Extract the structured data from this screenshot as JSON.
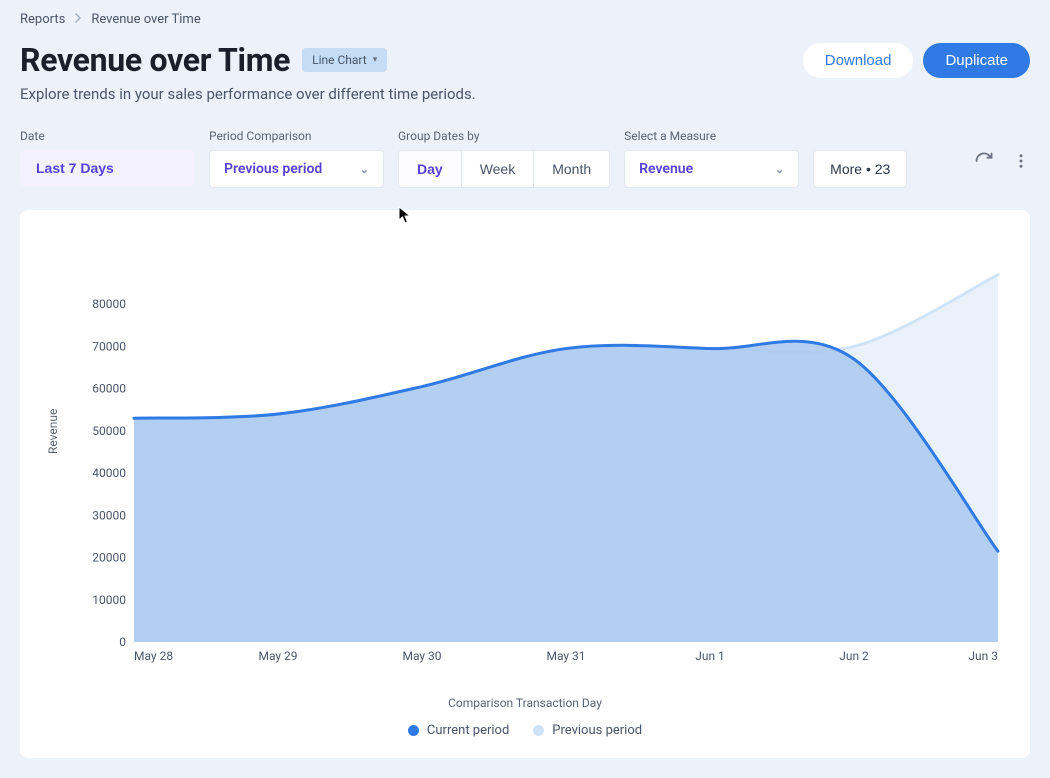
{
  "breadcrumb": {
    "root": "Reports",
    "page": "Revenue over Time"
  },
  "title": "Revenue over Time",
  "chart_type_label": "Line Chart",
  "subtitle": "Explore trends in your sales performance over different time periods.",
  "actions": {
    "download": "Download",
    "duplicate": "Duplicate"
  },
  "filters": {
    "date_label": "Date",
    "date_value": "Last 7 Days",
    "period_label": "Period Comparison",
    "period_value": "Previous period",
    "group_label": "Group Dates by",
    "group_options": {
      "day": "Day",
      "week": "Week",
      "month": "Month"
    },
    "group_selected": "Day",
    "measure_label": "Select a Measure",
    "measure_value": "Revenue",
    "more_label": "More • 23"
  },
  "chart": {
    "type": "area",
    "y_axis_title": "Revenue",
    "x_axis_title": "Comparison Transaction Day",
    "x_categories": [
      "May 28",
      "May 29",
      "May 30",
      "May 31",
      "Jun 1",
      "Jun 2",
      "Jun 3"
    ],
    "y_ticks": [
      0,
      10000,
      20000,
      30000,
      40000,
      50000,
      60000,
      70000,
      80000
    ],
    "ylim": [
      0,
      90000
    ],
    "series": [
      {
        "name": "Current period",
        "color": "#2f7ae5",
        "fill": "#accaf0",
        "fill_opacity": 0.9,
        "values": [
          53000,
          54000,
          60500,
          69500,
          69500,
          67000,
          21500
        ]
      },
      {
        "name": "Previous period",
        "color": "#cfe3f7",
        "fill": "#cfe3f7",
        "fill_opacity": 0.45,
        "values": [
          53000,
          54000,
          60500,
          69500,
          69500,
          70000,
          87000
        ]
      }
    ],
    "legend": {
      "current": "Current period",
      "previous": "Previous period",
      "current_color": "#2f7ae5",
      "previous_color": "#cfe3f7"
    },
    "background_color": "#ffffff",
    "line_width": 3,
    "label_fontsize": 12,
    "label_color": "#4a5568"
  },
  "colors": {
    "page_bg": "#edf2fa",
    "primary": "#2f7ae5",
    "accent_text": "#5742d6",
    "pill_bg": "#f2f1fd",
    "chart_pill_bg": "#c4dcf5"
  }
}
